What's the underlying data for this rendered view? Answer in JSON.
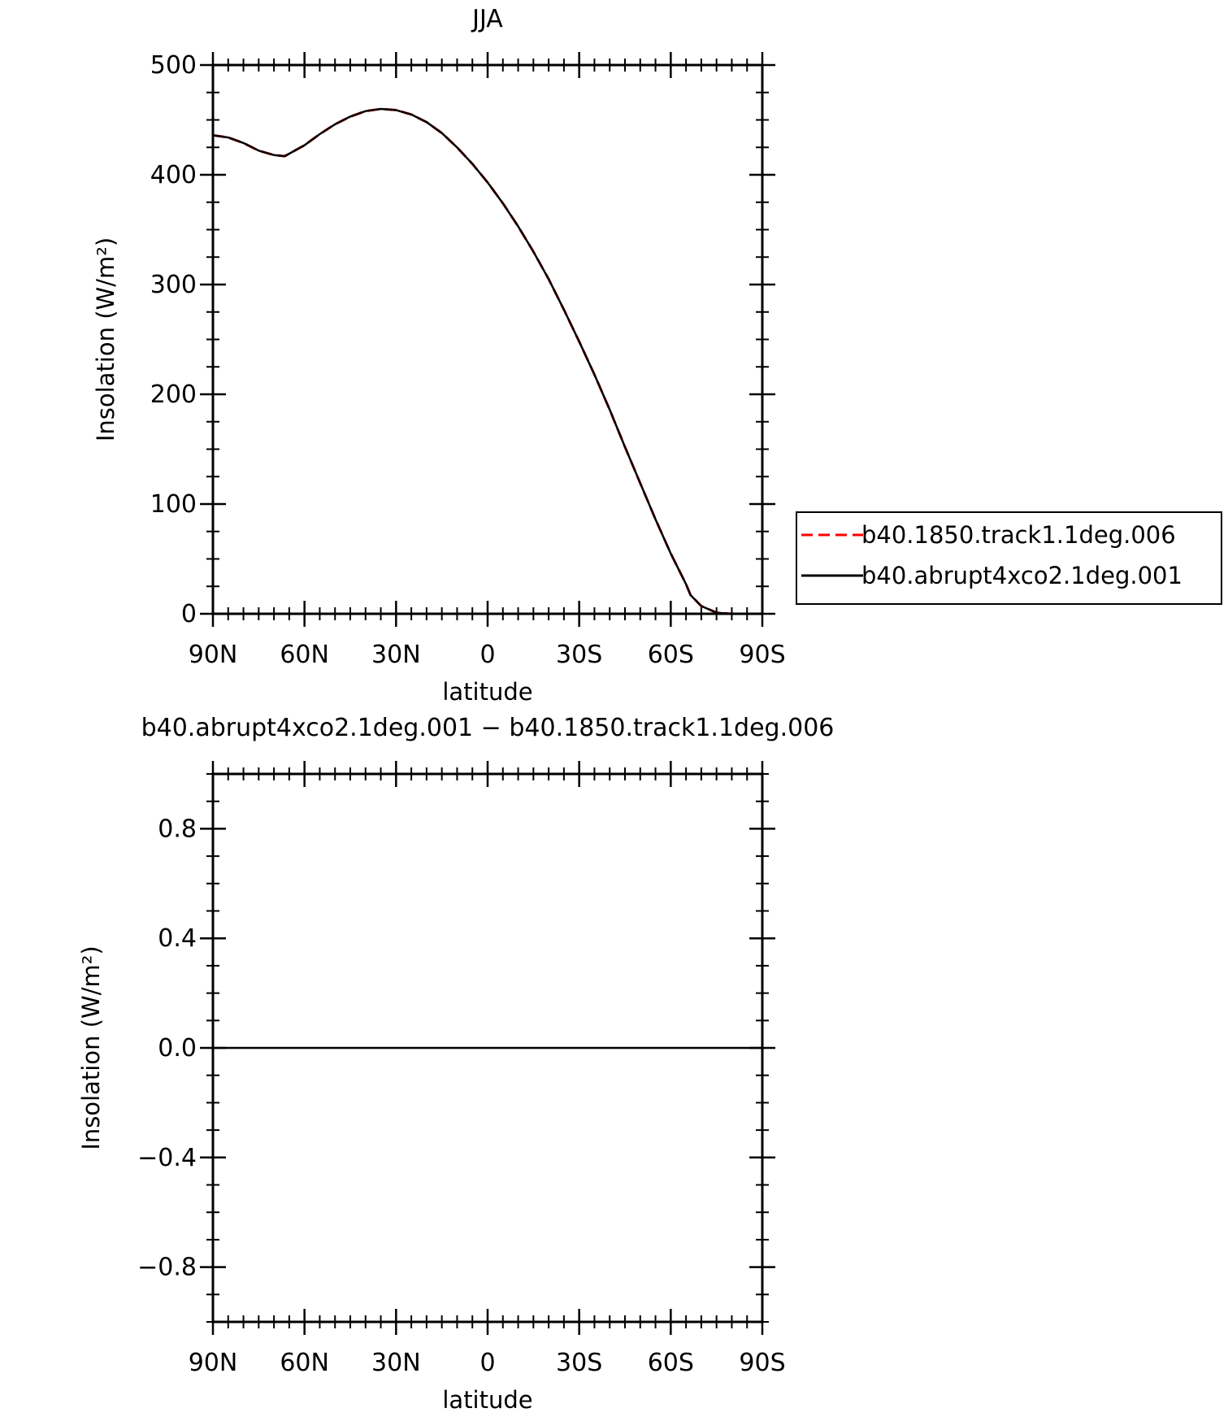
{
  "chart_data": [
    {
      "type": "line",
      "title": "JJA",
      "xlabel": "latitude",
      "ylabel": "Insolation  (W/m²)",
      "xlim": [
        90,
        -90
      ],
      "ylim": [
        0,
        500
      ],
      "xticks": [
        90,
        60,
        30,
        0,
        -30,
        -60,
        -90
      ],
      "xtick_labels": [
        "90N",
        "60N",
        "30N",
        "0",
        "30S",
        "60S",
        "90S"
      ],
      "yticks": [
        0,
        100,
        200,
        300,
        400,
        500
      ],
      "ytick_labels": [
        "0",
        "100",
        "200",
        "300",
        "400",
        "500"
      ],
      "legend_position": "right",
      "series": [
        {
          "name": "b40.1850.track1.1deg.006",
          "color": "#ff0000",
          "style": "dashed",
          "x": [
            90,
            85,
            80,
            75,
            70,
            66.5,
            60,
            55,
            50,
            45,
            40,
            35,
            30,
            25,
            20,
            15,
            10,
            5,
            0,
            -5,
            -10,
            -15,
            -20,
            -25,
            -30,
            -35,
            -40,
            -45,
            -50,
            -55,
            -60,
            -65,
            -66.5,
            -70,
            -75,
            -80,
            -85,
            -90
          ],
          "y": [
            436,
            434,
            429,
            422,
            418,
            417,
            427,
            437,
            446,
            453,
            458,
            460,
            459,
            455,
            448,
            438,
            425,
            410,
            393,
            374,
            353,
            330,
            305,
            277,
            248,
            218,
            186,
            152,
            119,
            86,
            55,
            27,
            17,
            7,
            1,
            0,
            0,
            0
          ]
        },
        {
          "name": "b40.abrupt4xco2.1deg.001",
          "color": "#000000",
          "style": "solid",
          "x": [
            90,
            85,
            80,
            75,
            70,
            66.5,
            60,
            55,
            50,
            45,
            40,
            35,
            30,
            25,
            20,
            15,
            10,
            5,
            0,
            -5,
            -10,
            -15,
            -20,
            -25,
            -30,
            -35,
            -40,
            -45,
            -50,
            -55,
            -60,
            -65,
            -66.5,
            -70,
            -75,
            -80,
            -85,
            -90
          ],
          "y": [
            436,
            434,
            429,
            422,
            418,
            417,
            427,
            437,
            446,
            453,
            458,
            460,
            459,
            455,
            448,
            438,
            425,
            410,
            393,
            374,
            353,
            330,
            305,
            277,
            248,
            218,
            186,
            152,
            119,
            86,
            55,
            27,
            17,
            7,
            1,
            0,
            0,
            0
          ]
        }
      ]
    },
    {
      "type": "line",
      "title": "b40.abrupt4xco2.1deg.001 − b40.1850.track1.1deg.006",
      "xlabel": "latitude",
      "ylabel": "Insolation  (W/m²)",
      "xlim": [
        90,
        -90
      ],
      "ylim": [
        -1,
        1
      ],
      "xticks": [
        90,
        60,
        30,
        0,
        -30,
        -60,
        -90
      ],
      "xtick_labels": [
        "90N",
        "60N",
        "30N",
        "0",
        "30S",
        "60S",
        "90S"
      ],
      "yticks": [
        -0.8,
        -0.4,
        0.0,
        0.4,
        0.8
      ],
      "ytick_labels": [
        "−0.8",
        "−0.4",
        "0.0",
        "0.4",
        "0.8"
      ],
      "series": [
        {
          "color": "#000000",
          "style": "solid",
          "x": [
            90,
            60,
            30,
            0,
            -30,
            -60,
            -90
          ],
          "y": [
            0,
            0,
            0,
            0,
            0,
            0,
            0
          ]
        }
      ]
    }
  ]
}
